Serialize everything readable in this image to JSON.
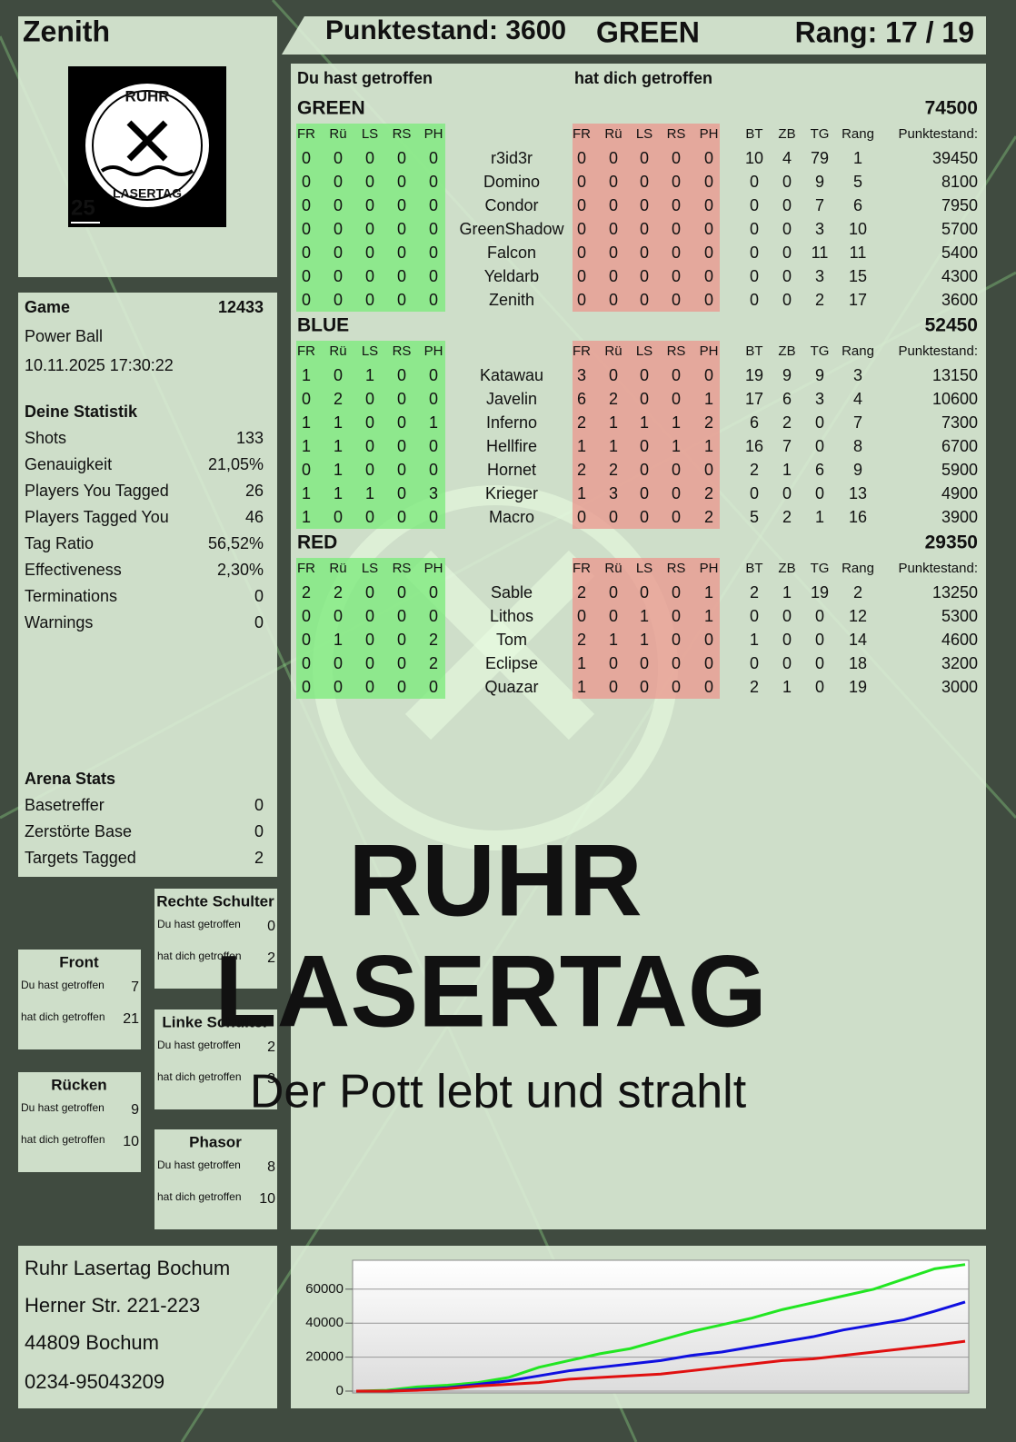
{
  "header": {
    "player": "Zenith",
    "score": "Punktestand: 3600",
    "team": "GREEN",
    "rank": "Rang: 17 / 19"
  },
  "logo": {
    "top": "RUHR",
    "bottom": "LASERTAG",
    "number": "25"
  },
  "watermark": {
    "line1": "RUHR",
    "line2": "LASERTAG",
    "slogan": "Der Pott lebt und strahlt"
  },
  "game": {
    "label": "Game",
    "id": 12433,
    "mode": "Power Ball",
    "datetime": "10.11.2025 17:30:22"
  },
  "stats": {
    "heading": "Deine Statistik",
    "rows": [
      {
        "label": "Shots",
        "value": 133
      },
      {
        "label": "Genauigkeit",
        "value": "21,05%"
      },
      {
        "label": "Players You Tagged",
        "value": 26
      },
      {
        "label": "Players Tagged You",
        "value": 46
      },
      {
        "label": "Tag Ratio",
        "value": "56,52%"
      },
      {
        "label": "Effectiveness",
        "value": "2,30%"
      },
      {
        "label": "Terminations",
        "value": 0
      },
      {
        "label": "Warnings",
        "value": 0
      }
    ]
  },
  "arena": {
    "heading": "Arena Stats",
    "rows": [
      {
        "label": "Basetreffer",
        "value": 0
      },
      {
        "label": "Zerstörte Base",
        "value": 0
      },
      {
        "label": "Targets Tagged",
        "value": 2
      }
    ]
  },
  "zones": [
    {
      "title": "Front",
      "rows": [
        {
          "label": "Du hast getroffen",
          "value": 7
        },
        {
          "label": "hat dich getroffen",
          "value": 21
        }
      ]
    },
    {
      "title": "Rücken",
      "rows": [
        {
          "label": "Du hast getroffen",
          "value": 9
        },
        {
          "label": "hat dich getroffen",
          "value": 10
        }
      ]
    },
    {
      "title": "Rechte Schulter",
      "rows": [
        {
          "label": "Du hast getroffen",
          "value": 0
        },
        {
          "label": "hat dich getroffen",
          "value": 2
        }
      ]
    },
    {
      "title": "Linke Schulter",
      "rows": [
        {
          "label": "Du hast getroffen",
          "value": 2
        },
        {
          "label": "hat dich getroffen",
          "value": 3
        }
      ]
    },
    {
      "title": "Phasor",
      "rows": [
        {
          "label": "Du hast getroffen",
          "value": 8
        },
        {
          "label": "hat dich getroffen",
          "value": 10
        }
      ]
    }
  ],
  "address": [
    "Ruhr Lasertag Bochum",
    "Herner Str. 221-223",
    "44809 Bochum",
    "0234-95043209"
  ],
  "table": {
    "left_heading": "Du hast getroffen",
    "right_heading": "hat dich getroffen",
    "columns": [
      "FR",
      "Rü",
      "LS",
      "RS",
      "PH",
      "FR",
      "Rü",
      "LS",
      "RS",
      "PH",
      "BT",
      "ZB",
      "TG",
      "Rang",
      "Punktestand:"
    ],
    "teams": [
      {
        "name": "GREEN",
        "color": "#1fdc1f",
        "score": 74500,
        "rows": [
          [
            0,
            0,
            0,
            0,
            0,
            "r3id3r",
            0,
            0,
            0,
            0,
            0,
            10,
            4,
            79,
            1,
            39450
          ],
          [
            0,
            0,
            0,
            0,
            0,
            "Domino",
            0,
            0,
            0,
            0,
            0,
            0,
            0,
            9,
            5,
            8100
          ],
          [
            0,
            0,
            0,
            0,
            0,
            "Condor",
            0,
            0,
            0,
            0,
            0,
            0,
            0,
            7,
            6,
            7950
          ],
          [
            0,
            0,
            0,
            0,
            0,
            "GreenShadow",
            0,
            0,
            0,
            0,
            0,
            0,
            0,
            3,
            10,
            5700
          ],
          [
            0,
            0,
            0,
            0,
            0,
            "Falcon",
            0,
            0,
            0,
            0,
            0,
            0,
            0,
            11,
            11,
            5400
          ],
          [
            0,
            0,
            0,
            0,
            0,
            "Yeldarb",
            0,
            0,
            0,
            0,
            0,
            0,
            0,
            3,
            15,
            4300
          ],
          [
            0,
            0,
            0,
            0,
            0,
            "Zenith",
            0,
            0,
            0,
            0,
            0,
            0,
            0,
            2,
            17,
            3600
          ]
        ]
      },
      {
        "name": "BLUE",
        "color": "#1010e0",
        "score": 52450,
        "rows": [
          [
            1,
            0,
            1,
            0,
            0,
            "Katawau",
            3,
            0,
            0,
            0,
            0,
            19,
            9,
            9,
            3,
            13150
          ],
          [
            0,
            2,
            0,
            0,
            0,
            "Javelin",
            6,
            2,
            0,
            0,
            1,
            17,
            6,
            3,
            4,
            10600
          ],
          [
            1,
            1,
            0,
            0,
            1,
            "Inferno",
            2,
            1,
            1,
            1,
            2,
            6,
            2,
            0,
            7,
            7300
          ],
          [
            1,
            1,
            0,
            0,
            0,
            "Hellfire",
            1,
            1,
            0,
            1,
            1,
            16,
            7,
            0,
            8,
            6700
          ],
          [
            0,
            1,
            0,
            0,
            0,
            "Hornet",
            2,
            2,
            0,
            0,
            0,
            2,
            1,
            6,
            9,
            5900
          ],
          [
            1,
            1,
            1,
            0,
            3,
            "Krieger",
            1,
            3,
            0,
            0,
            2,
            0,
            0,
            0,
            13,
            4900
          ],
          [
            1,
            0,
            0,
            0,
            0,
            "Macro",
            0,
            0,
            0,
            0,
            2,
            5,
            2,
            1,
            16,
            3900
          ]
        ]
      },
      {
        "name": "RED",
        "color": "#e01010",
        "score": 29350,
        "rows": [
          [
            2,
            2,
            0,
            0,
            0,
            "Sable",
            2,
            0,
            0,
            0,
            1,
            2,
            1,
            19,
            2,
            13250
          ],
          [
            0,
            0,
            0,
            0,
            0,
            "Lithos",
            0,
            0,
            1,
            0,
            1,
            0,
            0,
            0,
            12,
            5300
          ],
          [
            0,
            1,
            0,
            0,
            2,
            "Tom",
            2,
            1,
            1,
            0,
            0,
            1,
            0,
            0,
            14,
            4600
          ],
          [
            0,
            0,
            0,
            0,
            2,
            "Eclipse",
            1,
            0,
            0,
            0,
            0,
            0,
            0,
            0,
            18,
            3200
          ],
          [
            0,
            0,
            0,
            0,
            0,
            "Quazar",
            1,
            0,
            0,
            0,
            0,
            2,
            1,
            0,
            19,
            3000
          ]
        ]
      }
    ]
  },
  "chart_data": {
    "type": "line",
    "ylim": [
      0,
      77000
    ],
    "yticks": [
      0,
      20000,
      40000,
      60000
    ],
    "grid": true,
    "series": [
      {
        "color": "#22e622",
        "values": [
          0,
          500,
          2500,
          3500,
          5000,
          8000,
          14000,
          18000,
          22000,
          25000,
          30000,
          35000,
          39000,
          43000,
          48000,
          52000,
          56000,
          60000,
          66000,
          72000,
          74500
        ]
      },
      {
        "color": "#1010e0",
        "values": [
          0,
          0,
          1000,
          2000,
          4000,
          6000,
          9000,
          12000,
          14000,
          16000,
          18000,
          21000,
          23000,
          26000,
          29000,
          32000,
          36000,
          39000,
          42000,
          47000,
          52450
        ]
      },
      {
        "color": "#e01010",
        "values": [
          0,
          0,
          500,
          1500,
          3000,
          4000,
          5000,
          7000,
          8000,
          9000,
          10000,
          12000,
          14000,
          16000,
          18000,
          19000,
          21000,
          23000,
          25000,
          27000,
          29350
        ]
      }
    ]
  }
}
